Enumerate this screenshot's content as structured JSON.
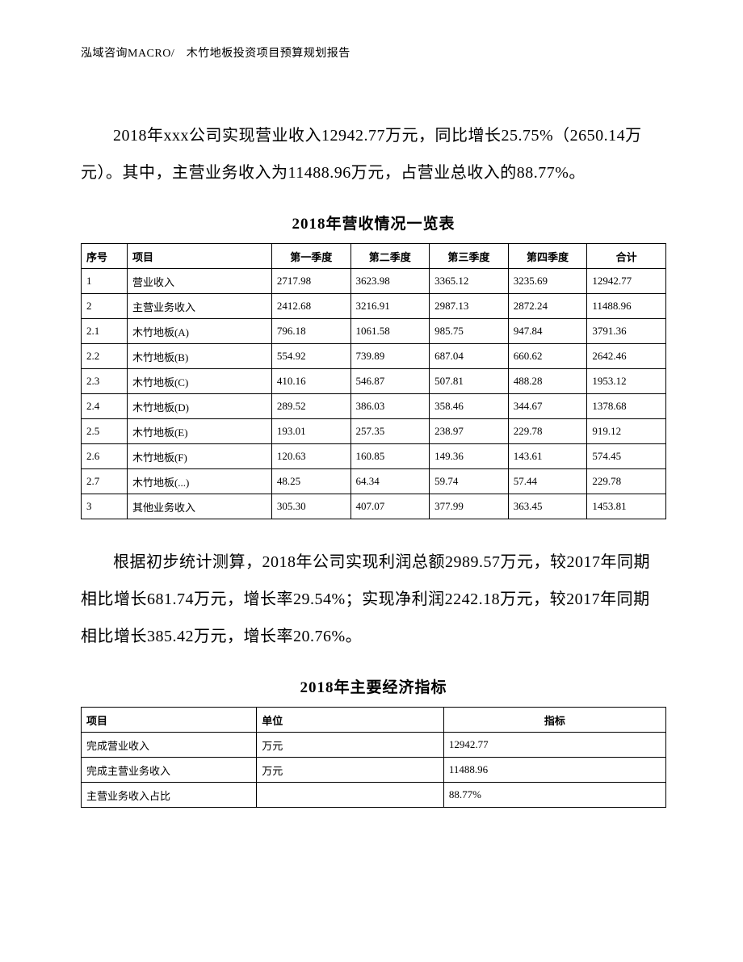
{
  "header": "泓域咨询MACRO/　木竹地板投资项目预算规划报告",
  "para1": "2018年xxx公司实现营业收入12942.77万元，同比增长25.75%（2650.14万元）。其中，主营业务收入为11488.96万元，占营业总收入的88.77%。",
  "table1_title": "2018年营收情况一览表",
  "table1": {
    "headers": [
      "序号",
      "项目",
      "第一季度",
      "第二季度",
      "第三季度",
      "第四季度",
      "合计"
    ],
    "rows": [
      [
        "1",
        "营业收入",
        "2717.98",
        "3623.98",
        "3365.12",
        "3235.69",
        "12942.77"
      ],
      [
        "2",
        "主营业务收入",
        "2412.68",
        "3216.91",
        "2987.13",
        "2872.24",
        "11488.96"
      ],
      [
        "2.1",
        "木竹地板(A)",
        "796.18",
        "1061.58",
        "985.75",
        "947.84",
        "3791.36"
      ],
      [
        "2.2",
        "木竹地板(B)",
        "554.92",
        "739.89",
        "687.04",
        "660.62",
        "2642.46"
      ],
      [
        "2.3",
        "木竹地板(C)",
        "410.16",
        "546.87",
        "507.81",
        "488.28",
        "1953.12"
      ],
      [
        "2.4",
        "木竹地板(D)",
        "289.52",
        "386.03",
        "358.46",
        "344.67",
        "1378.68"
      ],
      [
        "2.5",
        "木竹地板(E)",
        "193.01",
        "257.35",
        "238.97",
        "229.78",
        "919.12"
      ],
      [
        "2.6",
        "木竹地板(F)",
        "120.63",
        "160.85",
        "149.36",
        "143.61",
        "574.45"
      ],
      [
        "2.7",
        "木竹地板(...)",
        "48.25",
        "64.34",
        "59.74",
        "57.44",
        "229.78"
      ],
      [
        "3",
        "其他业务收入",
        "305.30",
        "407.07",
        "377.99",
        "363.45",
        "1453.81"
      ]
    ]
  },
  "para2": "根据初步统计测算，2018年公司实现利润总额2989.57万元，较2017年同期相比增长681.74万元，增长率29.54%；实现净利润2242.18万元，较2017年同期相比增长385.42万元，增长率20.76%。",
  "table2_title": "2018年主要经济指标",
  "table2": {
    "headers": [
      "项目",
      "单位",
      "指标"
    ],
    "rows": [
      [
        "完成营业收入",
        "万元",
        "12942.77"
      ],
      [
        "完成主营业务收入",
        "万元",
        "11488.96"
      ],
      [
        "主营业务收入占比",
        "",
        "88.77%"
      ]
    ]
  }
}
